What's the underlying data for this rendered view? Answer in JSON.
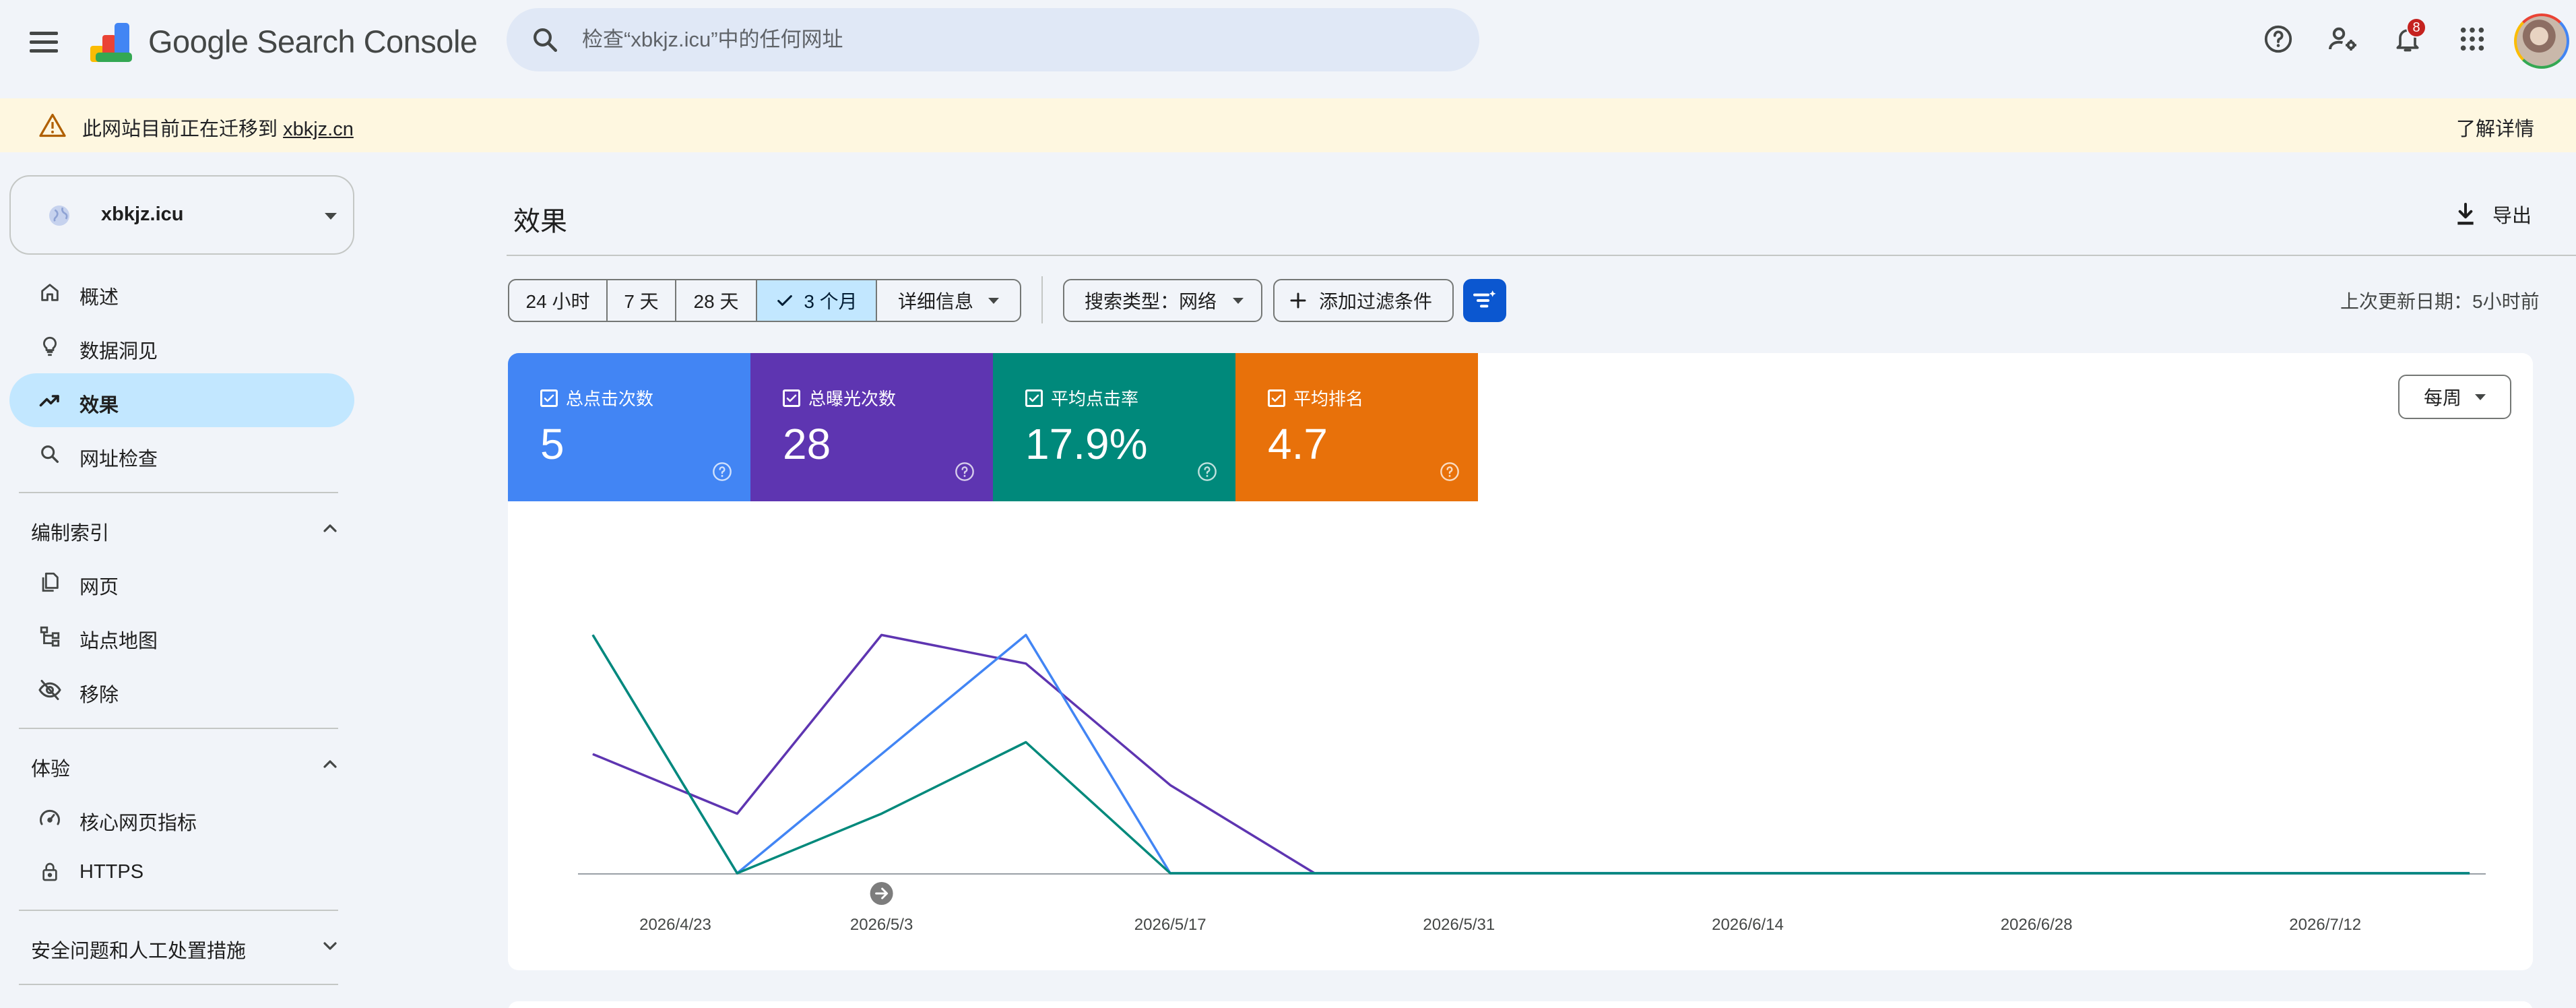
{
  "app": {
    "title": "Google Search Console",
    "search_placeholder": "检查“xbkjz.icu”中的任何网址",
    "notification_count": "8"
  },
  "banner": {
    "message": "此网站目前正在迁移到",
    "link": "xbkjz.cn",
    "learn_more": "了解详情"
  },
  "property": {
    "name": "xbkjz.icu"
  },
  "sidebar": {
    "items": [
      {
        "label": "概述",
        "icon": "home-icon"
      },
      {
        "label": "数据洞见",
        "icon": "lightbulb-icon"
      },
      {
        "label": "效果",
        "icon": "trending-up-icon",
        "active": true
      },
      {
        "label": "网址检查",
        "icon": "search-icon"
      }
    ],
    "sections": [
      {
        "label": "编制索引",
        "expanded": true,
        "items": [
          {
            "label": "网页",
            "icon": "pages-icon"
          },
          {
            "label": "站点地图",
            "icon": "sitemap-icon"
          },
          {
            "label": "移除",
            "icon": "visibility-off-icon"
          }
        ]
      },
      {
        "label": "体验",
        "expanded": true,
        "items": [
          {
            "label": "核心网页指标",
            "icon": "speed-icon"
          },
          {
            "label": "HTTPS",
            "icon": "lock-icon"
          }
        ]
      },
      {
        "label": "安全问题和人工处置措施",
        "expanded": false,
        "items": []
      }
    ]
  },
  "main": {
    "title": "效果",
    "export_label": "导出",
    "date_ranges": [
      "24 小时",
      "7 天",
      "28 天",
      "3 个月"
    ],
    "selected_range": "3 个月",
    "details_label": "详细信息",
    "search_type_label": "搜索类型：网络",
    "add_filter_label": "添加过滤条件",
    "last_updated": "上次更新日期：5小时前",
    "period_select": "每周"
  },
  "metrics": [
    {
      "label": "总点击次数",
      "value": "5",
      "color": "#4285f4",
      "checked": true
    },
    {
      "label": "总曝光次数",
      "value": "28",
      "color": "#5e35b1",
      "checked": true
    },
    {
      "label": "平均点击率",
      "value": "17.9%",
      "color": "#00897b",
      "checked": true
    },
    {
      "label": "平均排名",
      "value": "4.7",
      "color": "#e8710a",
      "checked": true
    }
  ],
  "chart_data": {
    "type": "line",
    "x_ticks": [
      "2026/4/23",
      "2026/5/3",
      "2026/5/17",
      "2026/5/31",
      "2026/6/14",
      "2026/6/28",
      "2026/7/12"
    ],
    "x": [
      "2026/4/19",
      "2026/4/26",
      "2026/5/3",
      "2026/5/10",
      "2026/5/17",
      "2026/5/24",
      "2026/5/31",
      "2026/6/7",
      "2026/6/14",
      "2026/6/21",
      "2026/6/28",
      "2026/7/5",
      "2026/7/12",
      "2026/7/19"
    ],
    "series": [
      {
        "name": "总点击次数",
        "color": "#4285f4",
        "values": [
          1,
          0,
          0.5,
          1,
          0,
          0,
          0,
          0,
          0,
          0,
          0,
          0,
          0,
          0
        ]
      },
      {
        "name": "总曝光次数",
        "color": "#5e35b1",
        "values": [
          0.5,
          0.25,
          1,
          0.88,
          0.37,
          0,
          0,
          0,
          0,
          0,
          0,
          0,
          0,
          0
        ]
      },
      {
        "name": "平均点击率",
        "color": "#00897b",
        "values": [
          1,
          0,
          0.25,
          0.55,
          0,
          0,
          0,
          0,
          0,
          0,
          0,
          0,
          0,
          0
        ]
      }
    ],
    "ylim": [
      0,
      1.25
    ],
    "grid": false,
    "annotation": "arrow-right-icon"
  }
}
